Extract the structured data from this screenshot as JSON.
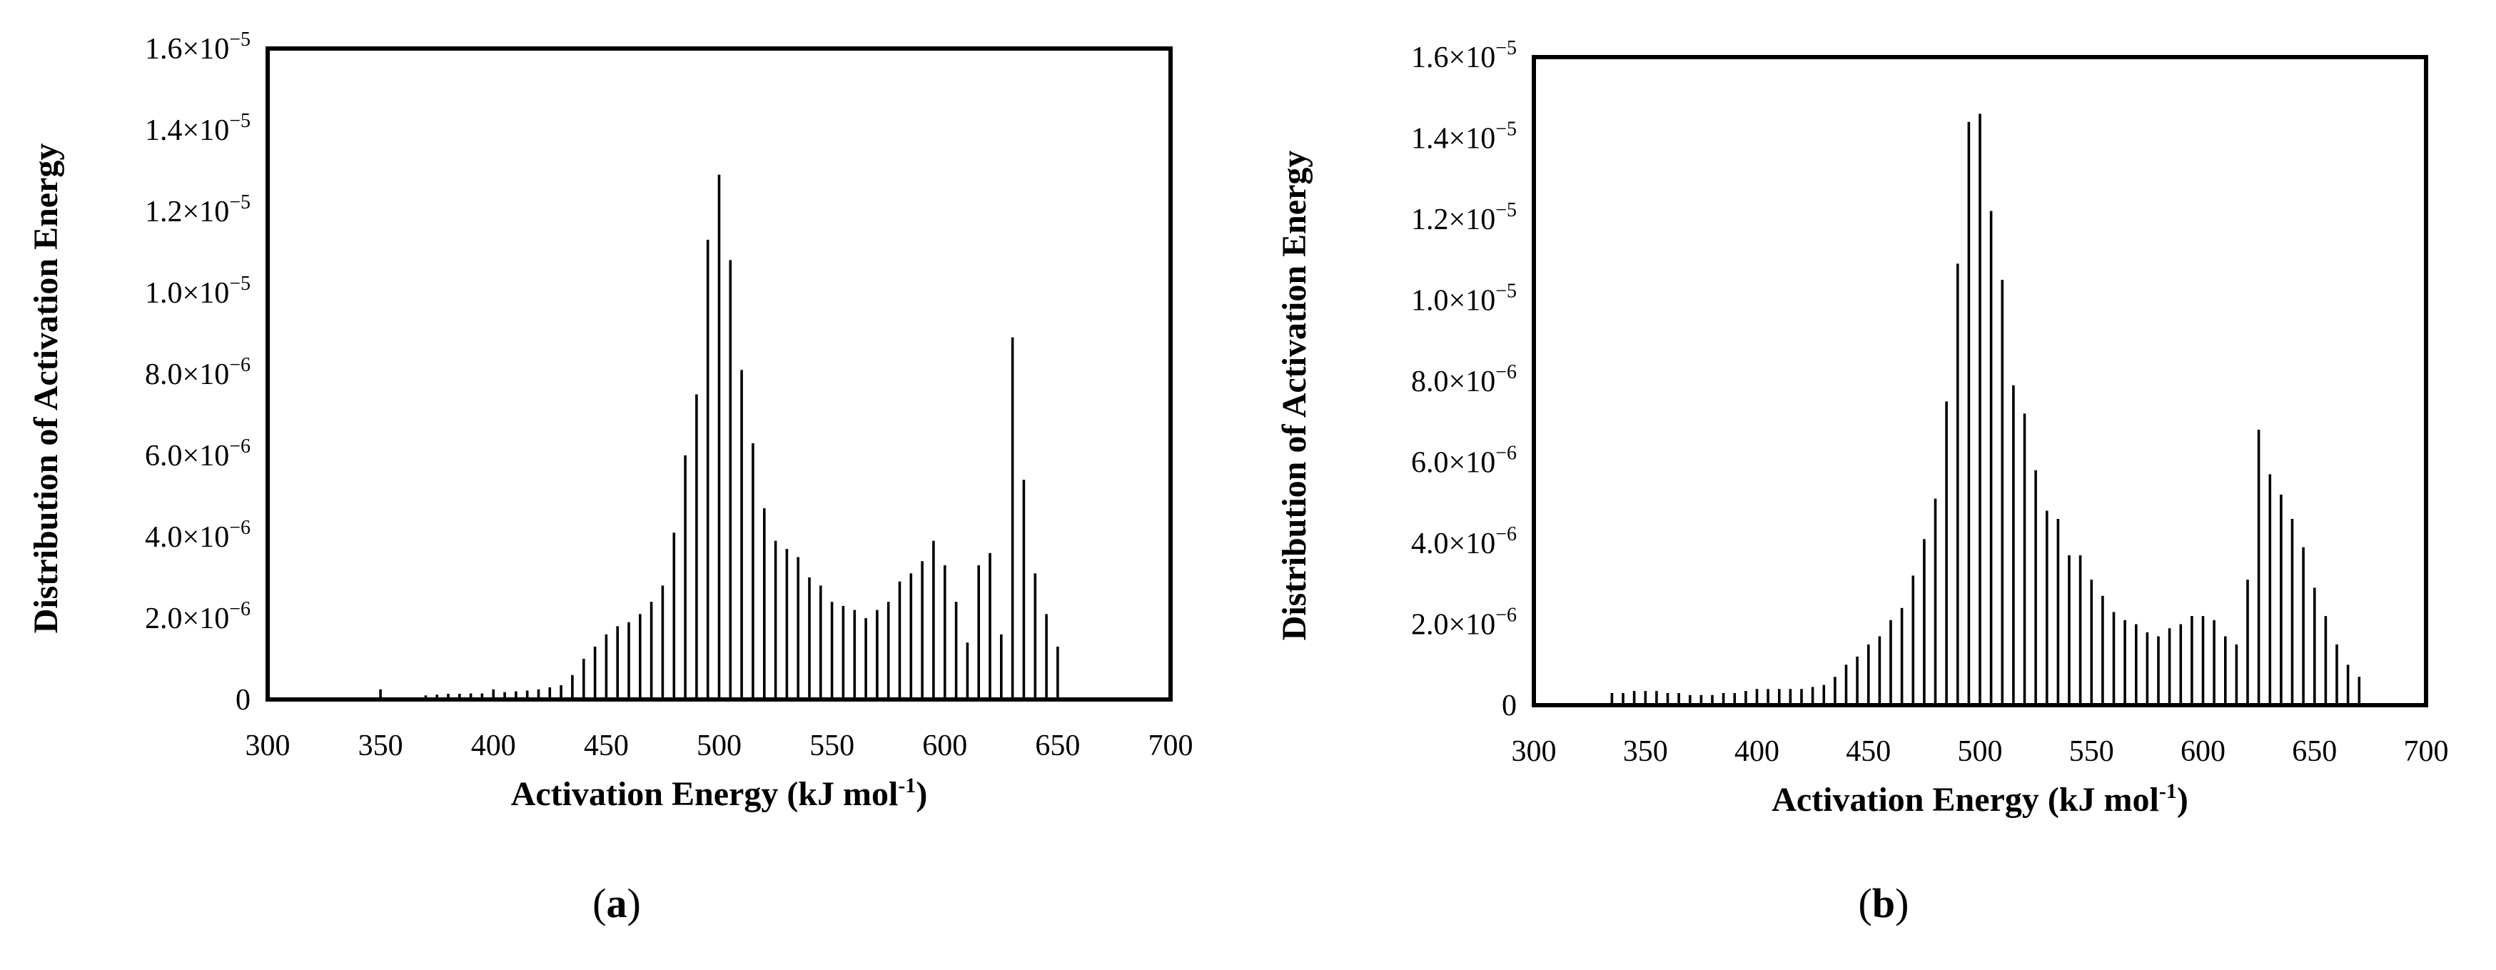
{
  "chart_data": [
    {
      "panel_label": "a",
      "type": "bar",
      "xlabel": "Activation Energy (kJ mol",
      "xlabel_sup": "-1",
      "xlabel_end": ")",
      "ylabel": "Distribution of Activation Energy",
      "xlim": [
        300,
        700
      ],
      "ylim": [
        0,
        1.6e-05
      ],
      "xticks": [
        "300",
        "350",
        "400",
        "450",
        "500",
        "550",
        "600",
        "650",
        "700"
      ],
      "yticks": [
        {
          "mantissa": "0",
          "exp": ""
        },
        {
          "mantissa": "2.0×10",
          "exp": "−6"
        },
        {
          "mantissa": "4.0×10",
          "exp": "−6"
        },
        {
          "mantissa": "6.0×10",
          "exp": "−6"
        },
        {
          "mantissa": "8.0×10",
          "exp": "−6"
        },
        {
          "mantissa": "1.0×10",
          "exp": "−5"
        },
        {
          "mantissa": "1.2×10",
          "exp": "−5"
        },
        {
          "mantissa": "1.4×10",
          "exp": "−5"
        },
        {
          "mantissa": "1.6×10",
          "exp": "−5"
        }
      ],
      "x": [
        350,
        370,
        375,
        380,
        385,
        390,
        395,
        400,
        405,
        410,
        415,
        420,
        425,
        430,
        435,
        440,
        445,
        450,
        455,
        460,
        465,
        470,
        475,
        480,
        485,
        490,
        495,
        500,
        505,
        510,
        515,
        520,
        525,
        530,
        535,
        540,
        545,
        550,
        555,
        560,
        565,
        570,
        575,
        580,
        585,
        590,
        595,
        600,
        605,
        610,
        615,
        620,
        625,
        630,
        635,
        640,
        645,
        650
      ],
      "values": [
        2.5e-07,
        1e-07,
        1.2e-07,
        1.4e-07,
        1.4e-07,
        1.5e-07,
        1.5e-07,
        2.5e-07,
        1.8e-07,
        2e-07,
        2.2e-07,
        2.5e-07,
        3e-07,
        3.5e-07,
        6e-07,
        1e-06,
        1.3e-06,
        1.6e-06,
        1.8e-06,
        1.9e-06,
        2.1e-06,
        2.4e-06,
        2.8e-06,
        4.1e-06,
        6e-06,
        7.5e-06,
        1.13e-05,
        1.29e-05,
        1.08e-05,
        8.1e-06,
        6.3e-06,
        4.7e-06,
        3.9e-06,
        3.7e-06,
        3.5e-06,
        3e-06,
        2.8e-06,
        2.4e-06,
        2.3e-06,
        2.2e-06,
        2e-06,
        2.2e-06,
        2.4e-06,
        2.9e-06,
        3.1e-06,
        3.4e-06,
        3.9e-06,
        3.3e-06,
        2.4e-06,
        1.4e-06,
        3.3e-06,
        3.6e-06,
        1.6e-06,
        8.9e-06,
        5.4e-06,
        3.1e-06,
        2.1e-06,
        1.3e-06
      ]
    },
    {
      "panel_label": "b",
      "type": "bar",
      "xlabel": "Activation Energy (kJ mol",
      "xlabel_sup": "-1",
      "xlabel_end": ")",
      "ylabel": "Distribution of Activation Energy",
      "xlim": [
        300,
        700
      ],
      "ylim": [
        0,
        1.6e-05
      ],
      "xticks": [
        "300",
        "350",
        "400",
        "450",
        "500",
        "550",
        "600",
        "650",
        "700"
      ],
      "yticks": [
        {
          "mantissa": "0",
          "exp": ""
        },
        {
          "mantissa": "2.0×10",
          "exp": "−6"
        },
        {
          "mantissa": "4.0×10",
          "exp": "−6"
        },
        {
          "mantissa": "6.0×10",
          "exp": "−6"
        },
        {
          "mantissa": "8.0×10",
          "exp": "−6"
        },
        {
          "mantissa": "1.0×10",
          "exp": "−5"
        },
        {
          "mantissa": "1.2×10",
          "exp": "−5"
        },
        {
          "mantissa": "1.4×10",
          "exp": "−5"
        },
        {
          "mantissa": "1.6×10",
          "exp": "−5"
        }
      ],
      "x": [
        335,
        340,
        345,
        350,
        355,
        360,
        365,
        370,
        375,
        380,
        385,
        390,
        395,
        400,
        405,
        410,
        415,
        420,
        425,
        430,
        435,
        440,
        445,
        450,
        455,
        460,
        465,
        470,
        475,
        480,
        485,
        490,
        495,
        500,
        505,
        510,
        515,
        520,
        525,
        530,
        535,
        540,
        545,
        550,
        555,
        560,
        565,
        570,
        575,
        580,
        585,
        590,
        595,
        600,
        605,
        610,
        615,
        620,
        625,
        630,
        635,
        640,
        645,
        650,
        655,
        660,
        665,
        670
      ],
      "values": [
        3e-07,
        3e-07,
        3.5e-07,
        3.5e-07,
        3.5e-07,
        3e-07,
        3e-07,
        2.5e-07,
        2.5e-07,
        2.5e-07,
        3e-07,
        3e-07,
        3.5e-07,
        4e-07,
        4e-07,
        4e-07,
        4e-07,
        4e-07,
        4.5e-07,
        5e-07,
        7e-07,
        1e-06,
        1.2e-06,
        1.5e-06,
        1.7e-06,
        2.1e-06,
        2.4e-06,
        3.2e-06,
        4.1e-06,
        5.1e-06,
        7.5e-06,
        1.09e-05,
        1.44e-05,
        1.46e-05,
        1.22e-05,
        1.05e-05,
        7.9e-06,
        7.2e-06,
        5.8e-06,
        4.8e-06,
        4.6e-06,
        3.7e-06,
        3.7e-06,
        3.1e-06,
        2.7e-06,
        2.3e-06,
        2.1e-06,
        2e-06,
        1.8e-06,
        1.7e-06,
        1.9e-06,
        2e-06,
        2.2e-06,
        2.2e-06,
        2.1e-06,
        1.7e-06,
        1.5e-06,
        3.1e-06,
        6.8e-06,
        5.7e-06,
        5.2e-06,
        4.6e-06,
        3.9e-06,
        2.9e-06,
        2.2e-06,
        1.5e-06,
        1e-06,
        7e-07
      ]
    }
  ],
  "captions": [
    {
      "open": "(",
      "letter": "a",
      "close": ")"
    },
    {
      "open": "(",
      "letter": "b",
      "close": ")"
    }
  ]
}
